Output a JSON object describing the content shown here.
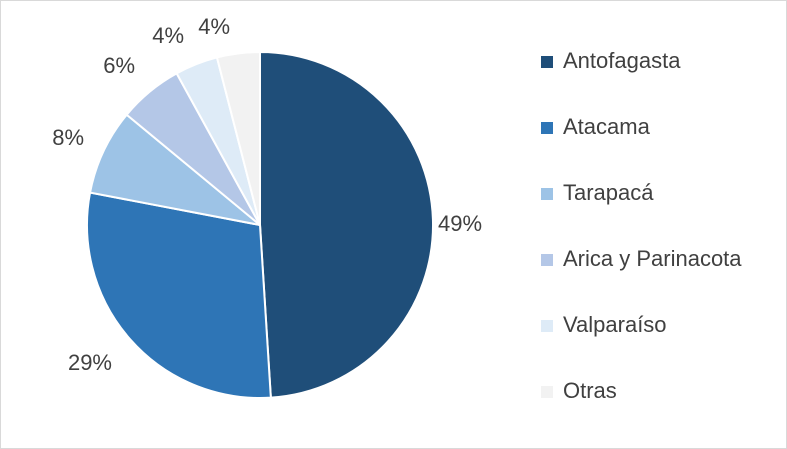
{
  "chart_data": {
    "type": "pie",
    "title": "",
    "legend_position": "right",
    "start_angle_deg": 0,
    "direction": "clockwise",
    "slices": [
      {
        "label": "Antofagasta",
        "value": 49,
        "display": "49%",
        "color": "#1f4e79"
      },
      {
        "label": "Atacama",
        "value": 29,
        "display": "29%",
        "color": "#2e75b6"
      },
      {
        "label": "Tarapacá",
        "value": 8,
        "display": "8%",
        "color": "#9dc3e6"
      },
      {
        "label": "Arica y Parinacota",
        "value": 6,
        "display": "6%",
        "color": "#b4c7e7"
      },
      {
        "label": "Valparaíso",
        "value": 4,
        "display": "4%",
        "color": "#deebf7"
      },
      {
        "label": "Otras",
        "value": 4,
        "display": "4%",
        "color": "#f2f2f2"
      }
    ]
  }
}
